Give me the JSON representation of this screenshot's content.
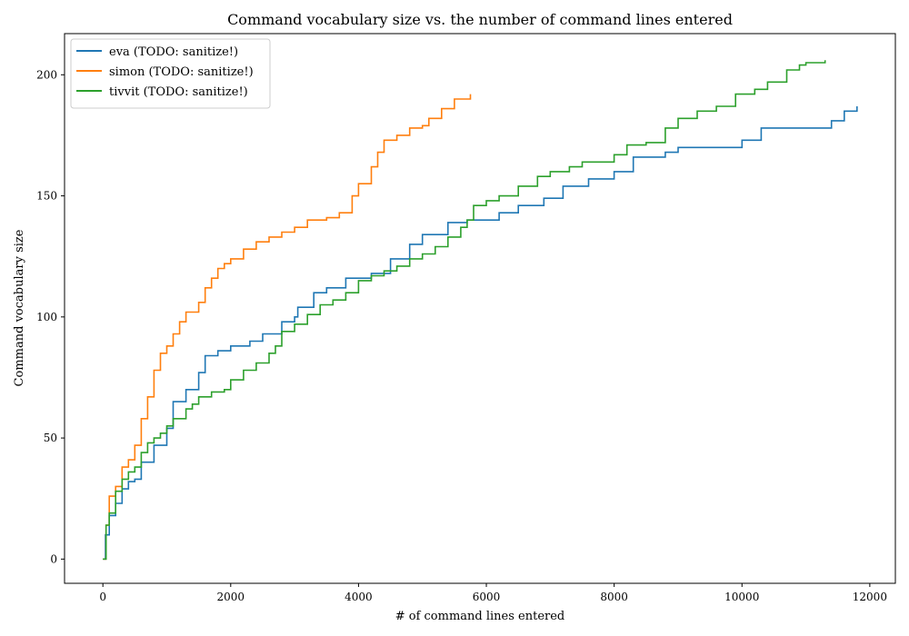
{
  "chart_data": {
    "type": "line",
    "title": "Command vocabulary size vs. the number of command lines entered",
    "xlabel": "# of command lines entered",
    "ylabel": "Command vocabulary size",
    "xlim": [
      -600,
      12400
    ],
    "ylim": [
      -10,
      217
    ],
    "xticks": [
      "0",
      "2000",
      "4000",
      "6000",
      "8000",
      "10000",
      "12000"
    ],
    "yticks": [
      "0",
      "50",
      "100",
      "150",
      "200"
    ],
    "grid": false,
    "legend_position": "top-left",
    "series": [
      {
        "name": "eva (TODO: sanitize!)",
        "color": "#1f77b4",
        "points": [
          [
            0,
            0
          ],
          [
            40,
            10
          ],
          [
            100,
            18
          ],
          [
            200,
            23
          ],
          [
            300,
            29
          ],
          [
            400,
            32
          ],
          [
            500,
            33
          ],
          [
            600,
            40
          ],
          [
            800,
            47
          ],
          [
            1000,
            54
          ],
          [
            1100,
            65
          ],
          [
            1300,
            70
          ],
          [
            1500,
            77
          ],
          [
            1600,
            84
          ],
          [
            1800,
            86
          ],
          [
            2000,
            88
          ],
          [
            2300,
            90
          ],
          [
            2500,
            93
          ],
          [
            2800,
            98
          ],
          [
            3000,
            100
          ],
          [
            3050,
            104
          ],
          [
            3300,
            110
          ],
          [
            3500,
            112
          ],
          [
            3800,
            116
          ],
          [
            4200,
            118
          ],
          [
            4500,
            124
          ],
          [
            4800,
            130
          ],
          [
            5000,
            134
          ],
          [
            5400,
            139
          ],
          [
            5700,
            140
          ],
          [
            6000,
            140
          ],
          [
            6200,
            143
          ],
          [
            6500,
            146
          ],
          [
            6900,
            149
          ],
          [
            7200,
            154
          ],
          [
            7600,
            157
          ],
          [
            8000,
            160
          ],
          [
            8300,
            166
          ],
          [
            8800,
            168
          ],
          [
            9000,
            170
          ],
          [
            9800,
            170
          ],
          [
            10000,
            173
          ],
          [
            10300,
            178
          ],
          [
            10600,
            178
          ],
          [
            11000,
            178
          ],
          [
            11300,
            178
          ],
          [
            11400,
            181
          ],
          [
            11600,
            185
          ],
          [
            11800,
            187
          ]
        ]
      },
      {
        "name": "simon (TODO: sanitize!)",
        "color": "#ff7f0e",
        "points": [
          [
            0,
            0
          ],
          [
            50,
            14
          ],
          [
            100,
            26
          ],
          [
            200,
            30
          ],
          [
            300,
            38
          ],
          [
            400,
            41
          ],
          [
            500,
            47
          ],
          [
            600,
            58
          ],
          [
            700,
            67
          ],
          [
            800,
            78
          ],
          [
            900,
            85
          ],
          [
            1000,
            88
          ],
          [
            1100,
            93
          ],
          [
            1200,
            98
          ],
          [
            1300,
            102
          ],
          [
            1500,
            106
          ],
          [
            1600,
            112
          ],
          [
            1700,
            116
          ],
          [
            1800,
            120
          ],
          [
            1900,
            122
          ],
          [
            2000,
            124
          ],
          [
            2200,
            128
          ],
          [
            2400,
            131
          ],
          [
            2600,
            133
          ],
          [
            2800,
            135
          ],
          [
            3000,
            137
          ],
          [
            3200,
            140
          ],
          [
            3500,
            141
          ],
          [
            3700,
            143
          ],
          [
            3900,
            150
          ],
          [
            4000,
            155
          ],
          [
            4200,
            162
          ],
          [
            4300,
            168
          ],
          [
            4400,
            173
          ],
          [
            4600,
            175
          ],
          [
            4800,
            178
          ],
          [
            5000,
            179
          ],
          [
            5100,
            182
          ],
          [
            5300,
            186
          ],
          [
            5500,
            190
          ],
          [
            5750,
            192
          ]
        ]
      },
      {
        "name": "tivvit (TODO: sanitize!)",
        "color": "#2ca02c",
        "points": [
          [
            0,
            0
          ],
          [
            50,
            14
          ],
          [
            100,
            19
          ],
          [
            200,
            28
          ],
          [
            300,
            33
          ],
          [
            400,
            36
          ],
          [
            500,
            38
          ],
          [
            600,
            44
          ],
          [
            700,
            48
          ],
          [
            800,
            50
          ],
          [
            900,
            52
          ],
          [
            1000,
            55
          ],
          [
            1100,
            58
          ],
          [
            1300,
            62
          ],
          [
            1400,
            64
          ],
          [
            1500,
            67
          ],
          [
            1700,
            69
          ],
          [
            1900,
            70
          ],
          [
            2000,
            74
          ],
          [
            2200,
            78
          ],
          [
            2400,
            81
          ],
          [
            2600,
            85
          ],
          [
            2700,
            88
          ],
          [
            2800,
            94
          ],
          [
            3000,
            97
          ],
          [
            3200,
            101
          ],
          [
            3400,
            105
          ],
          [
            3600,
            107
          ],
          [
            3800,
            110
          ],
          [
            4000,
            115
          ],
          [
            4200,
            117
          ],
          [
            4400,
            119
          ],
          [
            4600,
            121
          ],
          [
            4800,
            124
          ],
          [
            5000,
            126
          ],
          [
            5200,
            129
          ],
          [
            5400,
            133
          ],
          [
            5600,
            137
          ],
          [
            5700,
            140
          ],
          [
            5800,
            146
          ],
          [
            6000,
            148
          ],
          [
            6200,
            150
          ],
          [
            6500,
            154
          ],
          [
            6800,
            158
          ],
          [
            7000,
            160
          ],
          [
            7300,
            162
          ],
          [
            7500,
            164
          ],
          [
            8000,
            167
          ],
          [
            8200,
            171
          ],
          [
            8500,
            172
          ],
          [
            8800,
            178
          ],
          [
            9000,
            182
          ],
          [
            9300,
            185
          ],
          [
            9600,
            187
          ],
          [
            9900,
            192
          ],
          [
            10200,
            194
          ],
          [
            10400,
            197
          ],
          [
            10700,
            202
          ],
          [
            10900,
            204
          ],
          [
            11000,
            205
          ],
          [
            11300,
            206
          ]
        ]
      }
    ]
  }
}
